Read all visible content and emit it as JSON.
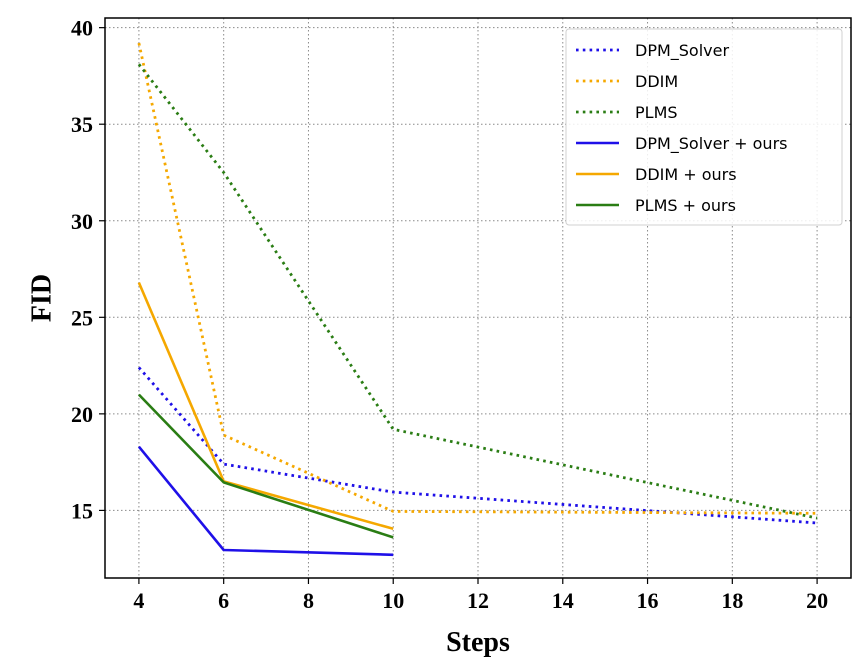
{
  "chart_data": {
    "type": "line",
    "xlabel": "Steps",
    "ylabel": "FID",
    "xlim": [
      3.2,
      20.8
    ],
    "ylim": [
      11.5,
      40.5
    ],
    "xticks": [
      4,
      6,
      8,
      10,
      12,
      14,
      16,
      18,
      20
    ],
    "yticks": [
      15,
      20,
      25,
      30,
      35,
      40
    ],
    "grid": true,
    "legend_position": "top-right",
    "series": [
      {
        "name": "DPM_Solver",
        "style": "dotted",
        "color": "#1f10e8",
        "x": [
          4,
          6,
          10,
          20
        ],
        "y": [
          22.4,
          17.4,
          15.95,
          14.35
        ]
      },
      {
        "name": "DDIM",
        "style": "dotted",
        "color": "#f5a800",
        "x": [
          4,
          6,
          10,
          20
        ],
        "y": [
          39.2,
          18.9,
          14.95,
          14.85
        ]
      },
      {
        "name": "PLMS",
        "style": "dotted",
        "color": "#2a7d14",
        "x": [
          4,
          6,
          10,
          20
        ],
        "y": [
          38.1,
          32.5,
          19.2,
          14.6
        ]
      },
      {
        "name": "DPM_Solver + ours",
        "style": "solid",
        "color": "#1f10e8",
        "x": [
          4,
          6,
          10
        ],
        "y": [
          18.3,
          12.95,
          12.7
        ]
      },
      {
        "name": "DDIM + ours",
        "style": "solid",
        "color": "#f5a800",
        "x": [
          4,
          6,
          10
        ],
        "y": [
          26.8,
          16.5,
          14.05
        ]
      },
      {
        "name": "PLMS + ours",
        "style": "solid",
        "color": "#2a7d14",
        "x": [
          4,
          6,
          10
        ],
        "y": [
          21.0,
          16.45,
          13.6
        ]
      }
    ]
  }
}
